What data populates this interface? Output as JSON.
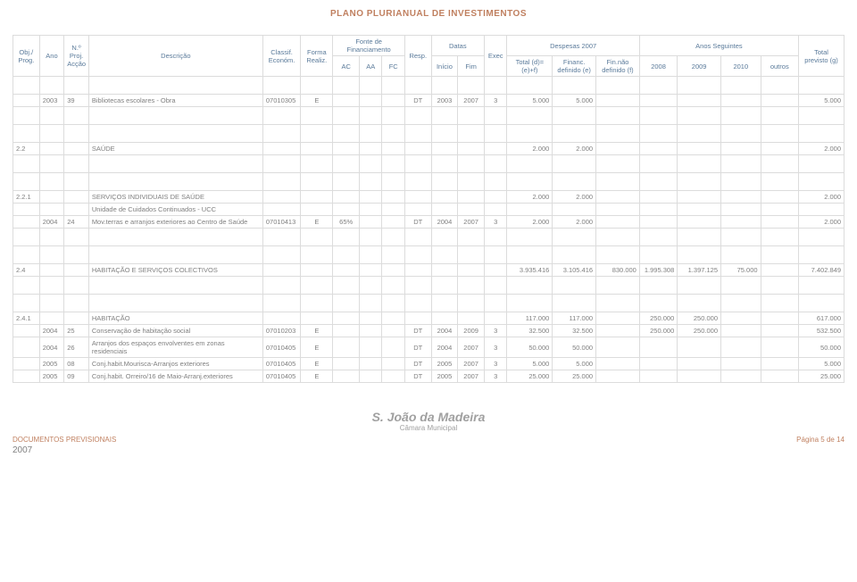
{
  "header": {
    "title": "PLANO PLURIANUAL DE INVESTIMENTOS",
    "cols": {
      "obj_prog": "Obj./\nProg.",
      "ano": "Ano",
      "n_proj": "N.º Proj. Acção",
      "descricao": "Descrição",
      "classif": "Classif. Económ.",
      "forma": "Forma Realiz.",
      "fonte_group": "Fonte de Financiamento",
      "ac": "AC",
      "aa": "AA",
      "fc": "FC",
      "resp": "Resp.",
      "datas_group": "Datas",
      "inicio": "Início",
      "fim": "Fim",
      "exec": "Exec",
      "despesas_group": "Despesas 2007",
      "total_def": "Total (d)=(e)+f)",
      "financ_e": "Financ. definido (e)",
      "fin_f": "Fin.não definido (f)",
      "anos_group": "Anos Seguintes",
      "y2008": "2008",
      "y2009": "2009",
      "y2010": "2010",
      "outros": "outros",
      "total_prev": "Total previsto (g)"
    }
  },
  "rows": [
    {
      "ano": "2003",
      "proj": "39",
      "desc": "Bibliotecas escolares - Obra",
      "clas": "07010305",
      "form": "E",
      "resp": "DT",
      "ini": "2003",
      "fim": "2007",
      "exec": "3",
      "td": "5.000",
      "fe": "5.000",
      "tpg": "5.000"
    },
    {
      "obj": "2.2",
      "desc": "SAÚDE",
      "td": "2.000",
      "fe": "2.000",
      "tpg": "2.000"
    },
    {
      "obj": "2.2.1",
      "desc": "SERVIÇOS INDIVIDUAIS DE SAÚDE",
      "td": "2.000",
      "fe": "2.000",
      "tpg": "2.000"
    },
    {
      "desc": "Unidade de Cuidados Continuados - UCC"
    },
    {
      "ano": "2004",
      "proj": "24",
      "desc": "Mov.terras e arranjos exteriores ao Centro de Saúde",
      "clas": "07010413",
      "form": "E",
      "ac": "65%",
      "resp": "DT",
      "ini": "2004",
      "fim": "2007",
      "exec": "3",
      "td": "2.000",
      "fe": "2.000",
      "tpg": "2.000"
    },
    {
      "obj": "2.4",
      "desc": "HABITAÇÃO E SERVIÇOS COLECTIVOS",
      "td": "3.935.416",
      "fe": "3.105.416",
      "ff": "830.000",
      "y08": "1.995.308",
      "y09": "1.397.125",
      "y10": "75.000",
      "tpg": "7.402.849"
    },
    {
      "obj": "2.4.1",
      "desc": "HABITAÇÃO",
      "td": "117.000",
      "fe": "117.000",
      "y08": "250.000",
      "y09": "250.000",
      "tpg": "617.000"
    },
    {
      "ano": "2004",
      "proj": "25",
      "desc": "Conservação de habitação social",
      "clas": "07010203",
      "form": "E",
      "resp": "DT",
      "ini": "2004",
      "fim": "2009",
      "exec": "3",
      "td": "32.500",
      "fe": "32.500",
      "y08": "250.000",
      "y09": "250.000",
      "tpg": "532.500"
    },
    {
      "ano": "2004",
      "proj": "26",
      "desc": "Arranjos dos espaços envolventes em zonas residenciais",
      "clas": "07010405",
      "form": "E",
      "resp": "DT",
      "ini": "2004",
      "fim": "2007",
      "exec": "3",
      "td": "50.000",
      "fe": "50.000",
      "tpg": "50.000"
    },
    {
      "ano": "2005",
      "proj": "08",
      "desc": "Conj.habit.Mourisca-Arranjos exteriores",
      "clas": "07010405",
      "form": "E",
      "resp": "DT",
      "ini": "2005",
      "fim": "2007",
      "exec": "3",
      "td": "5.000",
      "fe": "5.000",
      "tpg": "5.000"
    },
    {
      "ano": "2005",
      "proj": "09",
      "desc": "Conj.habit. Orreiro/16 de Maio-Arranj.exteriores",
      "clas": "07010405",
      "form": "E",
      "resp": "DT",
      "ini": "2005",
      "fim": "2007",
      "exec": "3",
      "td": "25.000",
      "fe": "25.000",
      "tpg": "25.000"
    }
  ],
  "footer": {
    "center1": "S. João da Madeira",
    "center2": "Câmara Municipal",
    "left": "DOCUMENTOS PREVISIONAIS",
    "right": "Página 5 de 14",
    "year": "2007"
  },
  "colwidths": [
    "28",
    "26",
    "26",
    "184",
    "40",
    "34",
    "28",
    "24",
    "24",
    "28",
    "28",
    "28",
    "24",
    "48",
    "46",
    "46",
    "40",
    "46",
    "42",
    "40",
    "48"
  ]
}
